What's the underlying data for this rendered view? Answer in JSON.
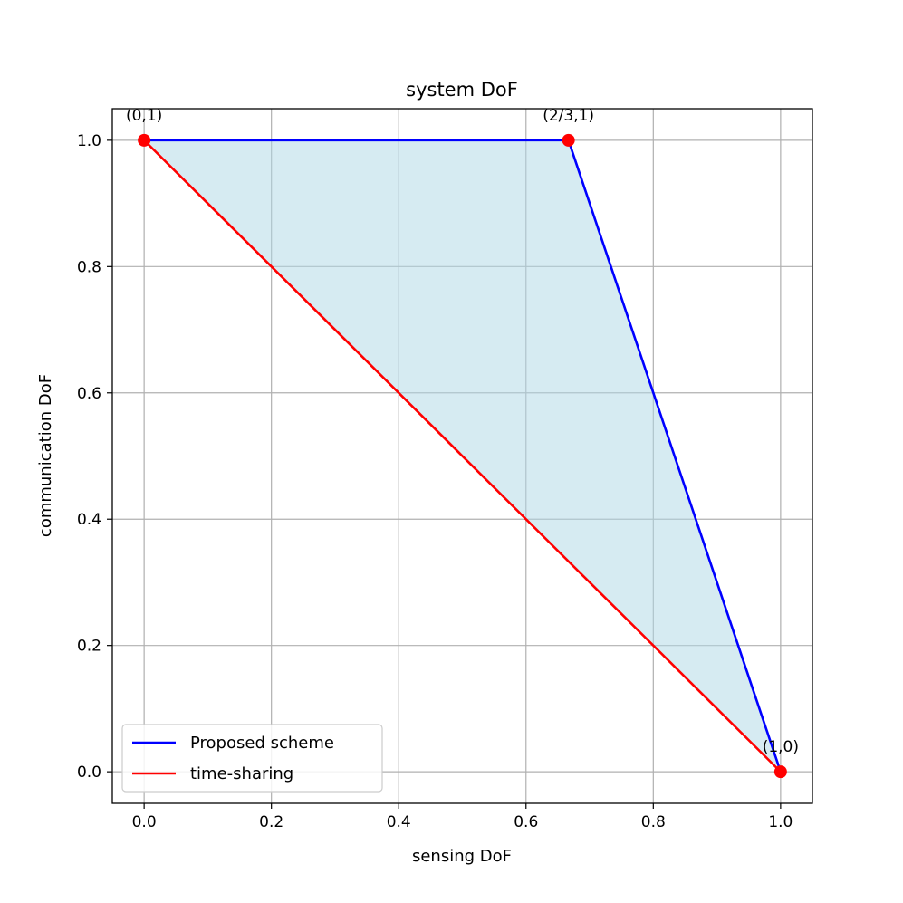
{
  "chart_data": {
    "type": "line",
    "title": "system DoF",
    "xlabel": "sensing DoF",
    "ylabel": "communication DoF",
    "xlim": [
      -0.05,
      1.05
    ],
    "ylim": [
      -0.05,
      1.05
    ],
    "x_ticks": [
      "0.0",
      "0.2",
      "0.4",
      "0.6",
      "0.8",
      "1.0"
    ],
    "y_ticks": [
      "0.0",
      "0.2",
      "0.4",
      "0.6",
      "0.8",
      "1.0"
    ],
    "x_tick_values": [
      0,
      0.2,
      0.4,
      0.6,
      0.8,
      1.0
    ],
    "y_tick_values": [
      0,
      0.2,
      0.4,
      0.6,
      0.8,
      1.0
    ],
    "grid": true,
    "legend_position": "lower-left",
    "shaded_region": {
      "color": "#add8e6",
      "opacity": 0.5,
      "points": [
        [
          0,
          1
        ],
        [
          0.6667,
          1
        ],
        [
          1,
          0
        ]
      ]
    },
    "series": [
      {
        "name": "Proposed scheme",
        "color": "#0000ff",
        "x": [
          0,
          0.6667,
          1
        ],
        "y": [
          1,
          1,
          0
        ]
      },
      {
        "name": "time-sharing",
        "color": "#ff0000",
        "x": [
          0,
          1
        ],
        "y": [
          1,
          0
        ]
      }
    ],
    "points": [
      {
        "x": 0,
        "y": 1,
        "label": "(0,1)",
        "color": "#ff0000"
      },
      {
        "x": 0.6667,
        "y": 1,
        "label": "(2/3,1)",
        "color": "#ff0000"
      },
      {
        "x": 1,
        "y": 0,
        "label": "(1,0)",
        "color": "#ff0000"
      }
    ]
  }
}
